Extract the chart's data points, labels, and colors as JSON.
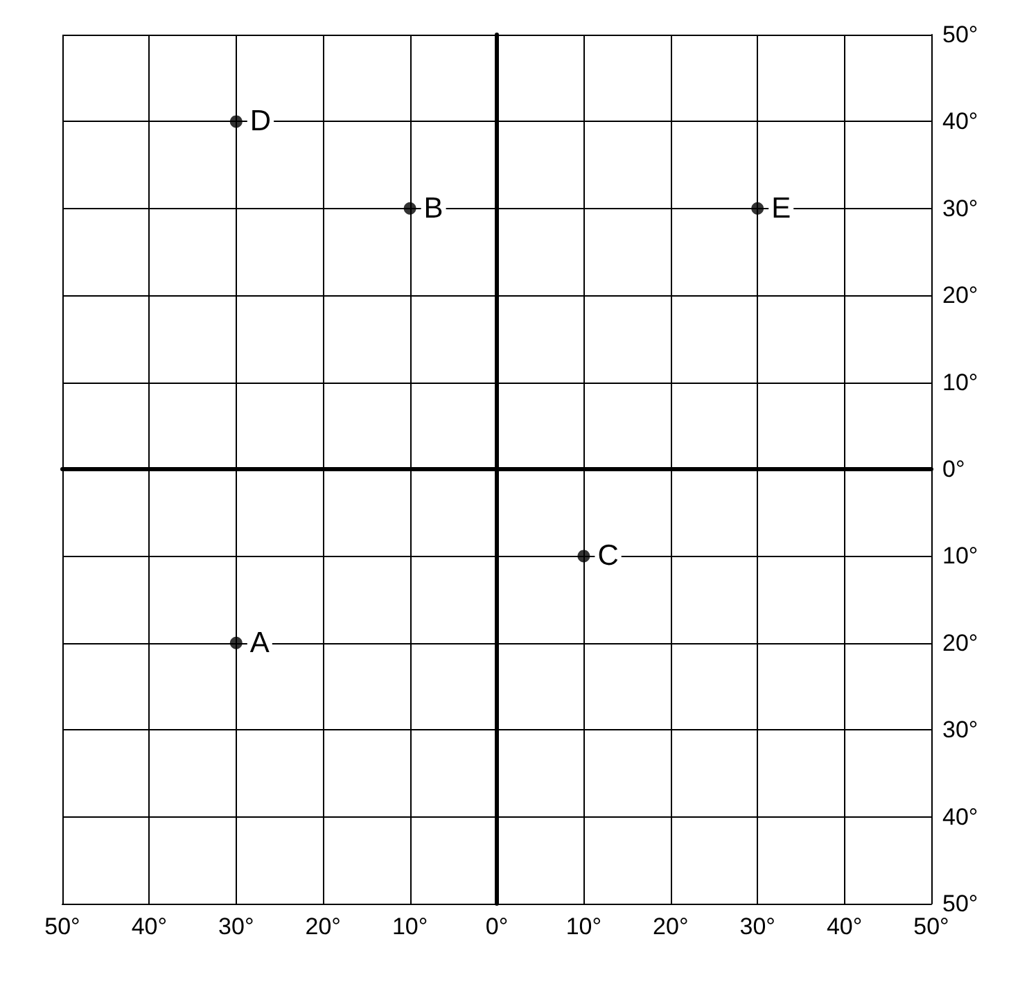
{
  "chart_data": {
    "type": "scatter",
    "series": [
      {
        "color": "#000000",
        "x": [
          -30,
          -10,
          10,
          -30,
          30
        ],
        "values": [
          -20,
          30,
          -10,
          40,
          30
        ]
      }
    ],
    "annotations": [
      {
        "text": "A",
        "x": -30,
        "y": -20
      },
      {
        "text": "B",
        "x": -10,
        "y": 30
      },
      {
        "text": "C",
        "x": 10,
        "y": -10
      },
      {
        "text": "D",
        "x": -30,
        "y": 40
      },
      {
        "text": "E",
        "x": 30,
        "y": 30
      }
    ],
    "xlim": [
      -50,
      50
    ],
    "ylim": [
      -50,
      50
    ],
    "xticks": [
      {
        "value": -50,
        "label": "50°"
      },
      {
        "value": -40,
        "label": "40°"
      },
      {
        "value": -30,
        "label": "30°"
      },
      {
        "value": -20,
        "label": "20°"
      },
      {
        "value": -10,
        "label": "10°"
      },
      {
        "value": 0,
        "label": "0°"
      },
      {
        "value": 10,
        "label": "10°"
      },
      {
        "value": 20,
        "label": "20°"
      },
      {
        "value": 30,
        "label": "30°"
      },
      {
        "value": 40,
        "label": "40°"
      },
      {
        "value": 50,
        "label": "50°"
      }
    ],
    "yticks": [
      {
        "value": -50,
        "label": "50°"
      },
      {
        "value": -40,
        "label": "40°"
      },
      {
        "value": -30,
        "label": "30°"
      },
      {
        "value": -20,
        "label": "20°"
      },
      {
        "value": -10,
        "label": "10°"
      },
      {
        "value": 0,
        "label": "0°"
      },
      {
        "value": 10,
        "label": "10°"
      },
      {
        "value": 20,
        "label": "20°"
      },
      {
        "value": 30,
        "label": "30°"
      },
      {
        "value": 40,
        "label": "40°"
      },
      {
        "value": 50,
        "label": "50°"
      }
    ],
    "grid": true,
    "marker": "circle"
  }
}
